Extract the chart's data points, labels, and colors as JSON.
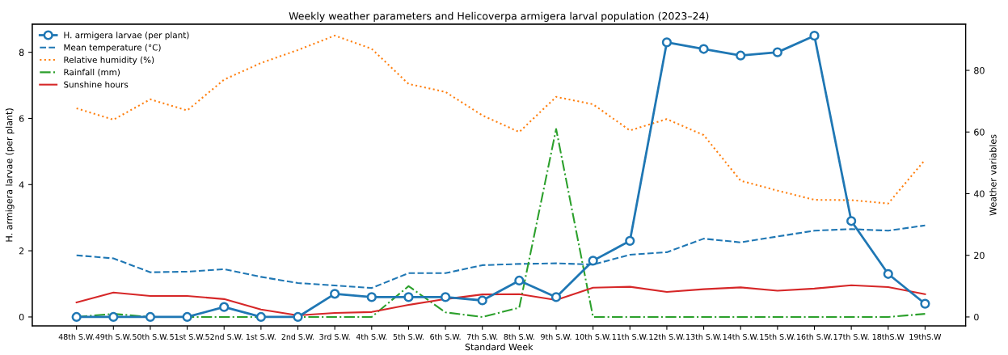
{
  "chart_data": {
    "type": "line",
    "title": "Weekly weather parameters and Helicoverpa armigera larval population (2023–24)",
    "xlabel": "Standard Week",
    "ylabel": "H. armigera larvae (per plant)",
    "y2label": "Weather variables",
    "categories": [
      "48th S.W.",
      "49th S.W.",
      "50th S.W.",
      "51st S.W.",
      "52nd S.W.",
      "1st S.W.",
      "2nd S.W.",
      "3rd S.W.",
      "4th S.W.",
      "5th S.W.",
      "6th S.W.",
      "7th S.W.",
      "8th S.W.",
      "9th S.W.",
      "10th S.W.",
      "11th S.W.",
      "12th S.W.",
      "13th S.W.",
      "14th S.W.",
      "15th S.W.",
      "16th S.W.",
      "17th S.W.",
      "18thS.W",
      "19thS.W"
    ],
    "series": [
      {
        "name": "H. armigera larvae (per plant)",
        "color": "#1f77b4",
        "marker": "circle",
        "line_style": "solid",
        "values": [
          0,
          0,
          0,
          0,
          0.3,
          0,
          0,
          0.7,
          0.6,
          0.6,
          0.6,
          0.5,
          1.1,
          0.6,
          1.7,
          2.3,
          8.3,
          8.1,
          7.9,
          8.0,
          8.5,
          2.9,
          1.3,
          0.4
        ]
      },
      {
        "name": "Mean temperature (°C)",
        "color": "#1f77b4",
        "line_style": "dashed",
        "axis": "y2",
        "values": [
          20,
          19,
          14.5,
          14.7,
          15.5,
          13,
          11,
          10.2,
          9.4,
          14.2,
          14.2,
          16.8,
          17.2,
          17.4,
          17,
          20.2,
          21,
          25.4,
          24.2,
          26.1,
          28,
          28.5,
          28,
          29.7
        ]
      },
      {
        "name": "Relative humidity (%)",
        "color": "#ff7f0e",
        "line_style": "dotted",
        "axis": "y2",
        "values": [
          67.7,
          64,
          70.6,
          67,
          77,
          82.4,
          86.6,
          91.3,
          87,
          75.6,
          73,
          65.4,
          60,
          71.4,
          69,
          60.5,
          64.2,
          59,
          44.2,
          41,
          38,
          37.9,
          36.8,
          51
        ]
      },
      {
        "name": "Rainfall (mm)",
        "color": "#2ca02c",
        "line_style": "dashdot",
        "axis": "y2",
        "values": [
          0,
          1,
          0,
          0,
          0,
          0,
          0,
          0,
          0,
          10,
          1.5,
          0,
          3,
          61,
          0,
          0,
          0,
          0,
          0,
          0,
          0,
          0,
          0,
          1
        ]
      },
      {
        "name": "Sunshine hours",
        "color": "#d62728",
        "line_style": "solid",
        "axis": "y2",
        "values": [
          4.7,
          7.9,
          6.8,
          6.8,
          5.8,
          2.4,
          0.5,
          1.3,
          1.6,
          3.9,
          5.8,
          7.3,
          7.4,
          5.5,
          9.5,
          9.8,
          8.1,
          9,
          9.6,
          8.5,
          9.2,
          10.3,
          9.7,
          7.4
        ]
      }
    ],
    "ylim": [
      -0.27,
      8.85
    ],
    "yticks": [
      0,
      2,
      4,
      6,
      8
    ],
    "y2lim": [
      -2.9,
      95
    ],
    "y2ticks": [
      0,
      20,
      40,
      60,
      80
    ],
    "legend": "top left",
    "grid": false
  }
}
